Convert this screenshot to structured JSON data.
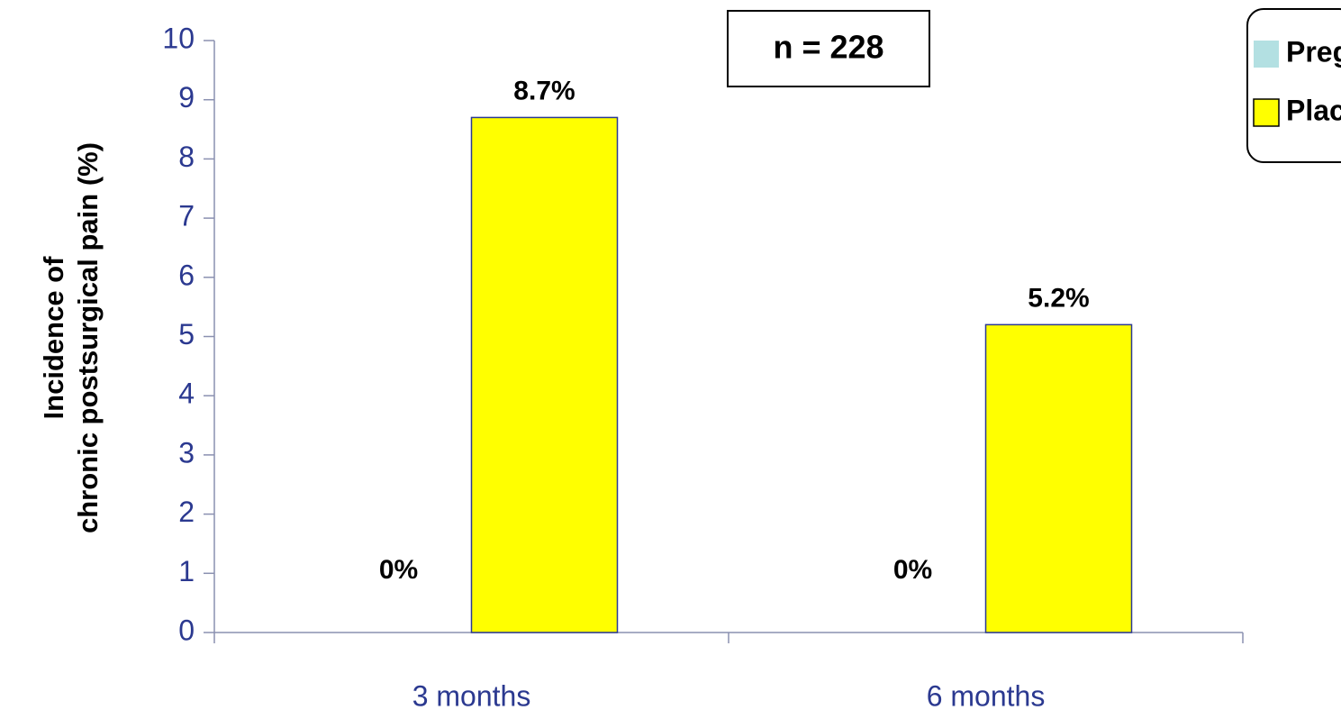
{
  "chart_data": {
    "type": "bar",
    "ylabel": [
      "Incidence of",
      "chronic postsurgical pain (%)"
    ],
    "annotation": "n = 228",
    "categories": [
      "3 months",
      "6 months"
    ],
    "series": [
      {
        "name": "Pregabalin",
        "color": "#b3e0e2",
        "values": [
          0,
          0
        ],
        "value_labels": [
          "0%",
          "0%"
        ]
      },
      {
        "name": "Placebo",
        "color": "#ffff00",
        "values": [
          8.7,
          5.2
        ],
        "value_labels": [
          "8.7%",
          "5.2%"
        ]
      }
    ],
    "ylim": [
      0,
      10
    ],
    "yticks": [
      0,
      1,
      2,
      3,
      4,
      5,
      6,
      7,
      8,
      9,
      10
    ],
    "legend": "top-right"
  }
}
